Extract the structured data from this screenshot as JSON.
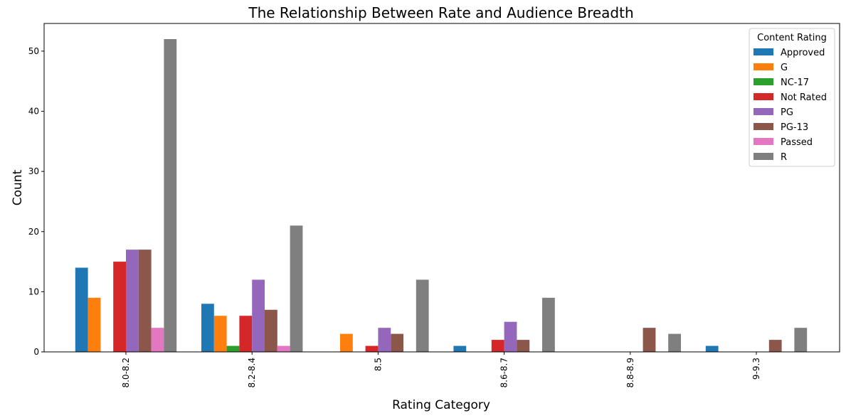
{
  "chart_data": {
    "type": "bar",
    "title": "The Relationship Between Rate and Audience Breadth",
    "xlabel": "Rating Category",
    "ylabel": "Count",
    "ylim": [
      0,
      54.6
    ],
    "yticks": [
      0,
      10,
      20,
      30,
      40,
      50
    ],
    "grid": false,
    "legend": {
      "title": "Content Rating",
      "placement": "top-right"
    },
    "categories": [
      "8.0-8.2",
      "8.2-8.4",
      "8.5",
      "8.6-8.7",
      "8.8-8.9",
      "9-9.3"
    ],
    "series": [
      {
        "name": "Approved",
        "color": "#1f77b4",
        "values": [
          14,
          8,
          0,
          1,
          0,
          1
        ]
      },
      {
        "name": "G",
        "color": "#ff7f0e",
        "values": [
          9,
          6,
          3,
          0,
          0,
          0
        ]
      },
      {
        "name": "NC-17",
        "color": "#2ca02c",
        "values": [
          0,
          1,
          0,
          0,
          0,
          0
        ]
      },
      {
        "name": "Not Rated",
        "color": "#d62728",
        "values": [
          15,
          6,
          1,
          2,
          0,
          0
        ]
      },
      {
        "name": "PG",
        "color": "#9467bd",
        "values": [
          17,
          12,
          4,
          5,
          0,
          0
        ]
      },
      {
        "name": "PG-13",
        "color": "#8c564b",
        "values": [
          17,
          7,
          3,
          2,
          4,
          2
        ]
      },
      {
        "name": "Passed",
        "color": "#e377c2",
        "values": [
          4,
          1,
          0,
          0,
          0,
          0
        ]
      },
      {
        "name": "R",
        "color": "#7f7f7f",
        "values": [
          52,
          21,
          12,
          9,
          3,
          4
        ]
      }
    ]
  }
}
